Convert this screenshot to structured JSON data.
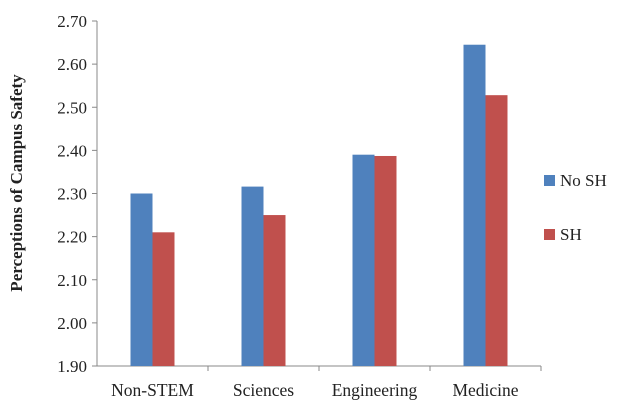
{
  "chart_data": {
    "type": "bar",
    "title": "",
    "xlabel": "",
    "ylabel": "Perceptions of Campus Safety",
    "ylim": [
      1.9,
      2.7
    ],
    "yticks": [
      "1.90",
      "2.00",
      "2.10",
      "2.20",
      "2.30",
      "2.40",
      "2.50",
      "2.60",
      "2.70"
    ],
    "categories": [
      "Non-STEM",
      "Sciences",
      "Engineering",
      "Medicine"
    ],
    "series": [
      {
        "name": "No SH",
        "color": "#4F81BD",
        "values": [
          2.3,
          2.316,
          2.39,
          2.645
        ]
      },
      {
        "name": "SH",
        "color": "#C0504D",
        "values": [
          2.21,
          2.25,
          2.387,
          2.528
        ]
      }
    ],
    "grid": false,
    "legend_position": "right"
  }
}
